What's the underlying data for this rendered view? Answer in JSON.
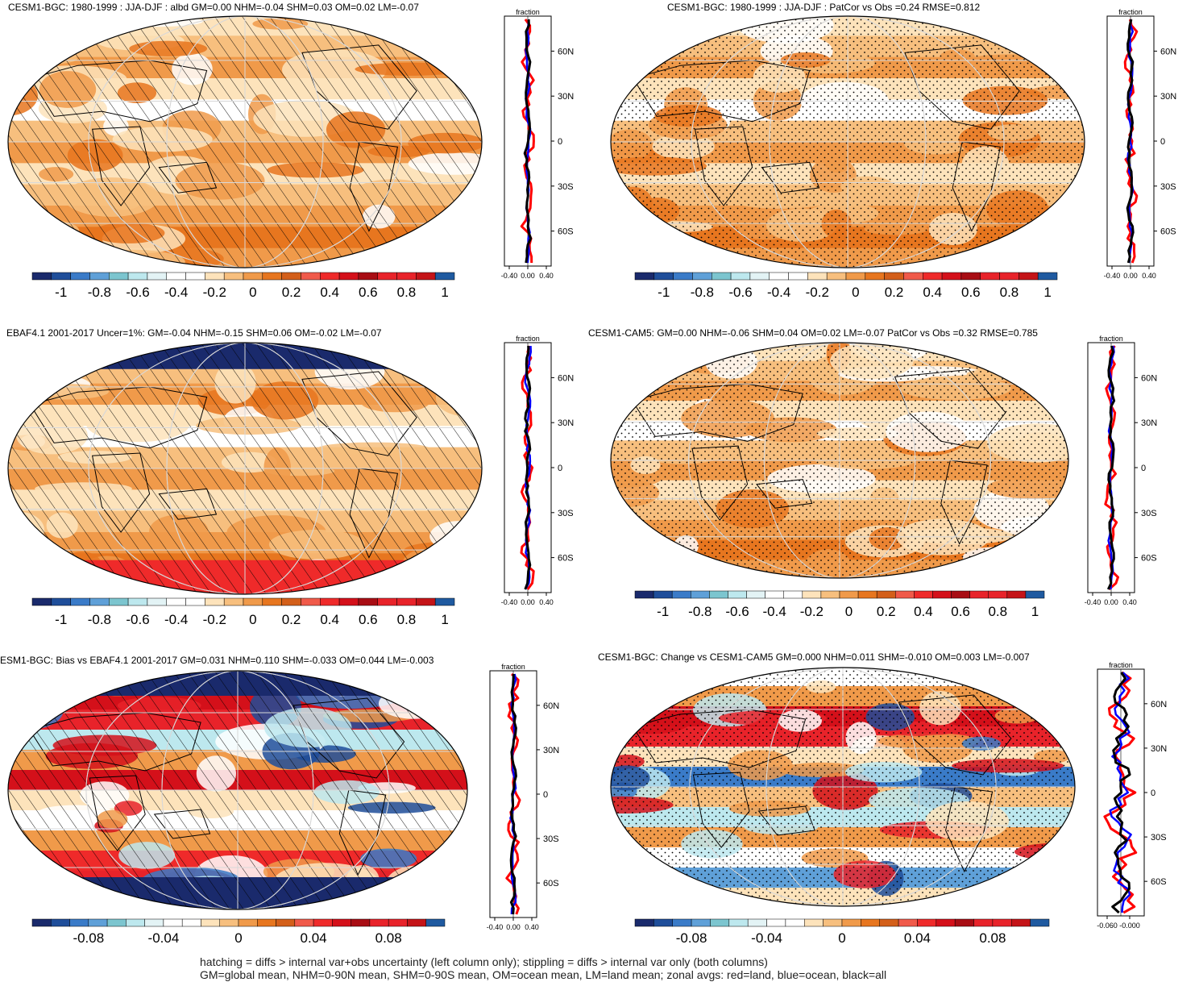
{
  "panels": [
    {
      "title": "CESM1-BGC: 1980-1999 : JJA-DJF : albd GM=0.00 NHM=-0.04 SHM=0.03 OM=0.02 LM=-0.07",
      "style": "plain",
      "hatch": true,
      "stipple": false,
      "polar": false,
      "zonal_label": "fraction",
      "zonal_ticks": [
        "-0.40",
        "0.00",
        "0.40"
      ],
      "lat_labels": [
        "60N",
        "30N",
        "0",
        "30S",
        "60S"
      ],
      "colorbar_labels": [
        "-1",
        "-0.8",
        "-0.6",
        "-0.4",
        "-0.2",
        "0",
        "0.2",
        "0.4",
        "0.6",
        "0.8",
        "1"
      ]
    },
    {
      "title": "CESM1-BGC: 1980-1999 : JJA-DJF : PatCor vs Obs =0.24 RMSE=0.812",
      "style": "plain",
      "hatch": false,
      "stipple": true,
      "polar": false,
      "zonal_label": "fraction",
      "zonal_ticks": [
        "-0.40",
        "0.00",
        "0.40"
      ],
      "lat_labels": [
        "60N",
        "30N",
        "0",
        "30S",
        "60S"
      ],
      "colorbar_labels": [
        "-1",
        "-0.8",
        "-0.6",
        "-0.4",
        "-0.2",
        "0",
        "0.2",
        "0.4",
        "0.6",
        "0.8",
        "1"
      ]
    },
    {
      "title": "EBAF4.1 2001-2017 Uncer=1%: GM=-0.04 NHM=-0.15 SHM=0.06 OM=-0.02 LM=-0.07",
      "style": "plain",
      "hatch": true,
      "stipple": false,
      "polar": true,
      "zonal_label": "fraction",
      "zonal_ticks": [
        "-0.40",
        "0.00",
        "0.40"
      ],
      "lat_labels": [
        "60N",
        "30N",
        "0",
        "30S",
        "60S"
      ],
      "colorbar_labels": [
        "-1",
        "-0.8",
        "-0.6",
        "-0.4",
        "-0.2",
        "0",
        "0.2",
        "0.4",
        "0.6",
        "0.8",
        "1"
      ]
    },
    {
      "title": "CESM1-CAM5: GM=0.00 NHM=-0.06 SHM=0.04 OM=0.02 LM=-0.07 PatCor vs Obs =0.32 RMSE=0.785",
      "style": "plain",
      "hatch": false,
      "stipple": true,
      "polar": false,
      "zonal_label": "fraction",
      "zonal_ticks": [
        "-0.40",
        "0.00",
        "0.40"
      ],
      "lat_labels": [
        "60N",
        "30N",
        "0",
        "30S",
        "60S"
      ],
      "colorbar_labels": [
        "-1",
        "-0.8",
        "-0.6",
        "-0.4",
        "-0.2",
        "0",
        "0.2",
        "0.4",
        "0.6",
        "0.8",
        "1"
      ]
    },
    {
      "title": "ESM1-BGC: Bias vs EBAF4.1 2001-2017 GM=0.031 NHM=0.110 SHM=-0.033 OM=0.044 LM=-0.003",
      "style": "bias",
      "hatch": true,
      "stipple": false,
      "polar": true,
      "zonal_label": "fraction",
      "zonal_ticks": [
        "-0.40",
        "0.00",
        "0.40"
      ],
      "lat_labels": [
        "60N",
        "30N",
        "0",
        "30S",
        "60S"
      ],
      "colorbar_labels": [
        "-0.08",
        "-0.04",
        "0",
        "0.04",
        "0.08"
      ]
    },
    {
      "title": "CESM1-BGC: Change vs CESM1-CAM5 GM=0.000 NHM=0.011 SHM=-0.010 OM=0.003 LM=-0.007",
      "style": "change",
      "hatch": false,
      "stipple": true,
      "polar": false,
      "zonal_label": "fraction",
      "zonal_ticks": [
        "-0.060",
        "-0.000"
      ],
      "lat_labels": [
        "60N",
        "30N",
        "0",
        "30S",
        "60S"
      ],
      "colorbar_labels": [
        "-0.08",
        "-0.04",
        "0",
        "0.04",
        "0.08"
      ]
    }
  ],
  "colors": {
    "palette": [
      "#1a2a6c",
      "#1f4e9a",
      "#3a7bc8",
      "#5fa0d8",
      "#7cc5cf",
      "#bde8ee",
      "#e3f3f5",
      "#ffffff",
      "#ffffff",
      "#fde3bb",
      "#f7bf7e",
      "#f09a4a",
      "#e7761f",
      "#d35f1a",
      "#f05a4a",
      "#ef2a2a",
      "#d4101a",
      "#a80d14",
      "#e8232a",
      "#e8232a",
      "#c41418",
      "#1f5aa0"
    ],
    "land_red": "#ff0000",
    "ocean_blue": "#0000ff",
    "all_black": "#000000"
  },
  "footer": {
    "line1": "hatching = diffs > internal var+obs uncertainty (left column only); stippling = diffs > internal var only (both columns)",
    "line2": "GM=global mean, NHM=0-90N mean, SHM=0-90S mean, OM=ocean mean, LM=land mean; zonal avgs: red=land, blue=ocean, black=all"
  }
}
